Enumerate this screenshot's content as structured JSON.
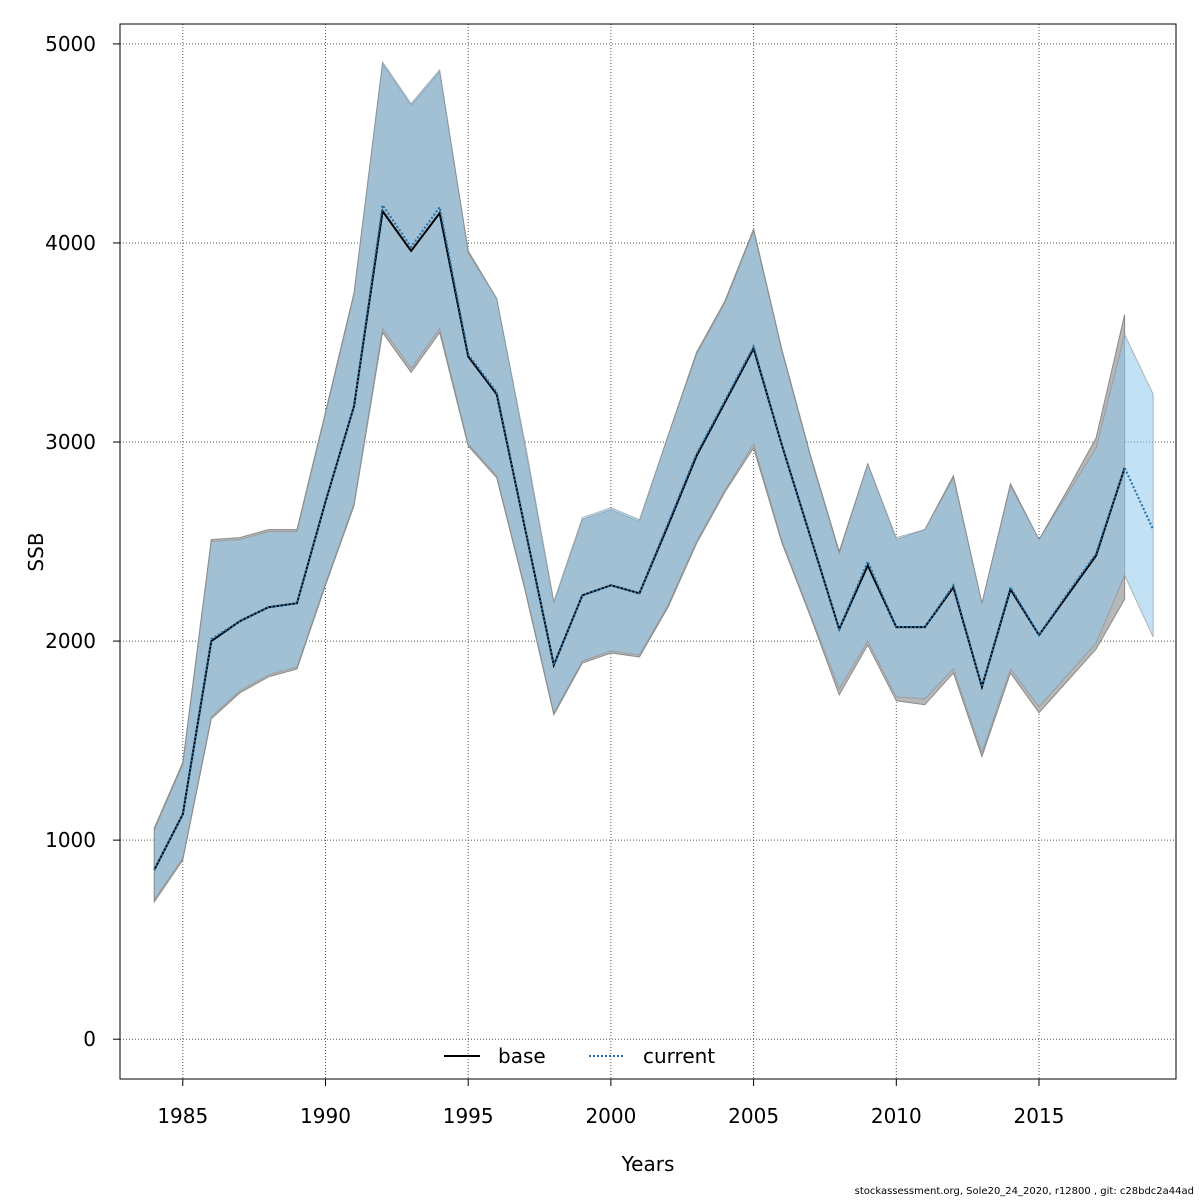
{
  "chart_data": {
    "type": "line",
    "xlabel": "Years",
    "ylabel": "SSB",
    "xlim": [
      1982.8,
      2019.8
    ],
    "ylim": [
      -200,
      5100
    ],
    "xticks": [
      1985,
      1990,
      1995,
      2000,
      2005,
      2010,
      2015
    ],
    "yticks": [
      0,
      1000,
      2000,
      3000,
      4000,
      5000
    ],
    "grid": true,
    "legend_position": "bottom-center",
    "colors": {
      "base_band": "#b3b3b3",
      "current_band": "#8fc9ec",
      "base_line": "#000000",
      "current_line": "#1f6fa8"
    },
    "series": [
      {
        "name": "base",
        "style": "solid",
        "x": [
          1984,
          1985,
          1986,
          1987,
          1988,
          1989,
          1990,
          1991,
          1992,
          1993,
          1994,
          1995,
          1996,
          1997,
          1998,
          1999,
          2000,
          2001,
          2002,
          2003,
          2004,
          2005,
          2006,
          2007,
          2008,
          2009,
          2010,
          2011,
          2012,
          2013,
          2014,
          2015,
          2016,
          2017,
          2018
        ],
        "values": [
          850,
          1130,
          2000,
          2100,
          2170,
          2190,
          2700,
          3180,
          4160,
          3960,
          4150,
          3430,
          3240,
          2560,
          1880,
          2230,
          2280,
          2240,
          2580,
          2930,
          3200,
          3470,
          2980,
          2520,
          2060,
          2380,
          2070,
          2070,
          2270,
          1770,
          2260,
          2030,
          2230,
          2430,
          2870
        ],
        "lower": [
          690,
          900,
          1610,
          1740,
          1820,
          1860,
          2280,
          2680,
          3550,
          3350,
          3550,
          2980,
          2820,
          2250,
          1630,
          1890,
          1940,
          1920,
          2170,
          2490,
          2750,
          2970,
          2490,
          2120,
          1730,
          1980,
          1700,
          1680,
          1840,
          1420,
          1840,
          1640,
          1800,
          1960,
          2210
        ],
        "upper": [
          1060,
          1390,
          2510,
          2520,
          2560,
          2560,
          3150,
          3750,
          4900,
          4690,
          4860,
          3960,
          3720,
          2970,
          2190,
          2610,
          2660,
          2600,
          3030,
          3450,
          3710,
          4070,
          3460,
          2930,
          2450,
          2890,
          2510,
          2560,
          2830,
          2190,
          2790,
          2510,
          2760,
          3020,
          3640
        ]
      },
      {
        "name": "current",
        "style": "dotted",
        "x": [
          1984,
          1985,
          1986,
          1987,
          1988,
          1989,
          1990,
          1991,
          1992,
          1993,
          1994,
          1995,
          1996,
          1997,
          1998,
          1999,
          2000,
          2001,
          2002,
          2003,
          2004,
          2005,
          2006,
          2007,
          2008,
          2009,
          2010,
          2011,
          2012,
          2013,
          2014,
          2015,
          2016,
          2017,
          2018,
          2019
        ],
        "values": [
          850,
          1130,
          2010,
          2100,
          2170,
          2190,
          2700,
          3180,
          4190,
          3980,
          4180,
          3440,
          3250,
          2560,
          1880,
          2230,
          2280,
          2240,
          2590,
          2940,
          3210,
          3480,
          2980,
          2520,
          2060,
          2400,
          2070,
          2070,
          2280,
          1770,
          2270,
          2030,
          2240,
          2440,
          2870,
          2560
        ],
        "lower": [
          700,
          910,
          1620,
          1750,
          1830,
          1870,
          2290,
          2690,
          3570,
          3370,
          3570,
          2990,
          2830,
          2260,
          1640,
          1900,
          1950,
          1930,
          2180,
          2500,
          2760,
          2990,
          2500,
          2130,
          1760,
          2000,
          1720,
          1710,
          1860,
          1440,
          1860,
          1670,
          1830,
          1990,
          2330,
          2020
        ],
        "upper": [
          1050,
          1380,
          2500,
          2510,
          2550,
          2550,
          3140,
          3740,
          4910,
          4700,
          4870,
          3950,
          3720,
          2990,
          2200,
          2620,
          2670,
          2610,
          3030,
          3440,
          3700,
          4060,
          3450,
          2920,
          2440,
          2890,
          2520,
          2560,
          2820,
          2190,
          2780,
          2510,
          2740,
          2970,
          3540,
          3240
        ]
      }
    ],
    "footer": "stockassessment.org, Sole20_24_2020, r12800 , git: c28bdc2a44ad"
  }
}
